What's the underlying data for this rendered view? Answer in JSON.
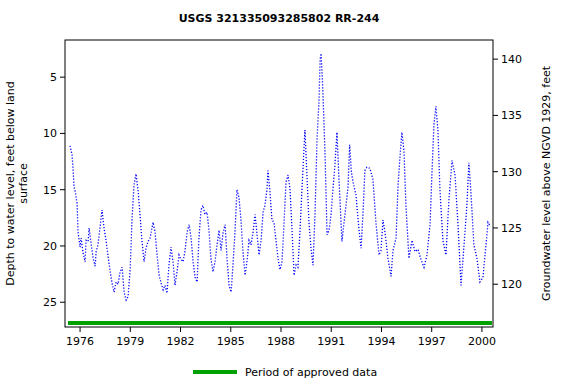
{
  "chart_data": {
    "type": "line",
    "title": "USGS 321335093285802 RR-244",
    "ylabel": [
      "Depth to water level, feet below land",
      "surface"
    ],
    "y2label": "Groundwater level above NGVD 1929, feet",
    "xlim": [
      1975.1,
      2000.66
    ],
    "xticks": [
      1976,
      1979,
      1982,
      1985,
      1988,
      1991,
      1994,
      1997,
      2000
    ],
    "ylim": [
      1.7,
      27.2
    ],
    "yticks": [
      5,
      10,
      15,
      20,
      25
    ],
    "y2lim": [
      141.7,
      116.2
    ],
    "y2ticks": [
      120,
      125,
      130,
      135,
      140
    ],
    "grid": false,
    "x": [
      1975.4,
      1975.52,
      1975.58,
      1975.64,
      1975.7,
      1975.82,
      1975.88,
      1976.0,
      1976.06,
      1976.18,
      1976.3,
      1976.36,
      1976.48,
      1976.54,
      1976.66,
      1976.78,
      1976.9,
      1976.96,
      1977.07,
      1977.19,
      1977.31,
      1977.43,
      1977.55,
      1977.67,
      1977.79,
      1977.91,
      1978.03,
      1978.15,
      1978.27,
      1978.39,
      1978.51,
      1978.63,
      1978.75,
      1978.87,
      1978.99,
      1979.1,
      1979.22,
      1979.34,
      1979.46,
      1979.58,
      1979.7,
      1979.82,
      1979.94,
      1980.06,
      1980.18,
      1980.36,
      1980.48,
      1980.6,
      1980.72,
      1980.84,
      1980.96,
      1981.07,
      1981.19,
      1981.31,
      1981.43,
      1981.55,
      1981.67,
      1981.79,
      1981.91,
      1982.03,
      1982.15,
      1982.27,
      1982.39,
      1982.51,
      1982.63,
      1982.75,
      1982.87,
      1982.99,
      1983.1,
      1983.22,
      1983.34,
      1983.46,
      1983.58,
      1983.7,
      1983.82,
      1983.94,
      1984.06,
      1984.18,
      1984.3,
      1984.42,
      1984.54,
      1984.66,
      1984.78,
      1984.9,
      1985.02,
      1985.13,
      1985.25,
      1985.37,
      1985.49,
      1985.61,
      1985.73,
      1985.85,
      1985.97,
      1986.09,
      1986.21,
      1986.33,
      1986.45,
      1986.57,
      1986.69,
      1986.81,
      1986.93,
      1987.04,
      1987.16,
      1987.22,
      1987.34,
      1987.46,
      1987.58,
      1987.7,
      1987.82,
      1987.94,
      1988.06,
      1988.18,
      1988.3,
      1988.42,
      1988.54,
      1988.66,
      1988.78,
      1988.9,
      1989.01,
      1989.13,
      1989.25,
      1989.43,
      1989.55,
      1989.67,
      1989.79,
      1989.91,
      1990.03,
      1990.15,
      1990.27,
      1990.33,
      1990.39,
      1990.45,
      1990.51,
      1990.63,
      1990.75,
      1990.87,
      1990.99,
      1991.1,
      1991.22,
      1991.34,
      1991.46,
      1991.64,
      1991.82,
      1992.0,
      1992.1,
      1992.2,
      1992.3,
      1992.48,
      1992.66,
      1992.78,
      1992.9,
      1993.01,
      1993.13,
      1993.31,
      1993.49,
      1993.67,
      1993.85,
      1993.97,
      1994.09,
      1994.21,
      1994.39,
      1994.57,
      1994.69,
      1994.87,
      1994.99,
      1995.1,
      1995.22,
      1995.34,
      1995.46,
      1995.64,
      1995.82,
      1996.0,
      1996.18,
      1996.36,
      1996.54,
      1996.72,
      1996.9,
      1997.01,
      1997.13,
      1997.25,
      1997.37,
      1997.49,
      1997.67,
      1997.85,
      1998.03,
      1998.21,
      1998.39,
      1998.57,
      1998.75,
      1998.93,
      1999.1,
      1999.22,
      1999.34,
      1999.52,
      1999.7,
      1999.88,
      2000.06,
      2000.24,
      2000.36,
      2000.48
    ],
    "series": [
      {
        "name": "Depth to water level",
        "color": "#0000ff",
        "line_style": "dotted",
        "values": [
          11.1,
          11.9,
          13.1,
          14.8,
          15.1,
          16.2,
          18.8,
          20.1,
          19.3,
          20.6,
          21.4,
          19.5,
          19.6,
          18.4,
          19.8,
          21.1,
          21.8,
          20.5,
          19.9,
          18.4,
          16.8,
          18.4,
          19.5,
          20.9,
          22.2,
          23.3,
          24.1,
          23.2,
          23.4,
          22.3,
          21.9,
          24.1,
          24.8,
          24.5,
          22.1,
          17.7,
          14.6,
          13.6,
          15.0,
          17.2,
          19.6,
          21.4,
          20.2,
          19.6,
          19.3,
          17.9,
          18.8,
          20.8,
          22.6,
          23.3,
          23.9,
          23.5,
          24.2,
          21.7,
          20.1,
          21.4,
          23.5,
          22.3,
          20.8,
          21.2,
          21.4,
          20.4,
          18.8,
          18.1,
          19.3,
          21.4,
          22.8,
          23.2,
          19.3,
          16.8,
          16.4,
          17.2,
          17.0,
          18.6,
          21.2,
          22.3,
          21.4,
          19.9,
          18.6,
          20.4,
          18.8,
          18.1,
          21.2,
          23.5,
          24.1,
          21.7,
          18.8,
          15.0,
          15.7,
          17.7,
          20.5,
          22.6,
          21.4,
          19.5,
          19.9,
          18.8,
          17.2,
          19.0,
          20.8,
          19.5,
          17.0,
          16.4,
          15.0,
          13.3,
          15.2,
          17.7,
          17.9,
          19.5,
          21.1,
          22.1,
          21.4,
          17.9,
          14.3,
          13.7,
          15.0,
          18.6,
          22.6,
          21.7,
          21.9,
          18.8,
          15.0,
          9.7,
          13.7,
          17.9,
          20.2,
          21.7,
          17.2,
          10.6,
          7.0,
          3.5,
          2.9,
          4.6,
          6.6,
          11.9,
          19.0,
          18.6,
          17.2,
          15.0,
          12.8,
          9.9,
          14.0,
          19.6,
          17.2,
          14.8,
          11.0,
          13.4,
          14.3,
          15.5,
          18.6,
          20.2,
          17.0,
          13.3,
          13.0,
          13.1,
          14.1,
          17.9,
          20.8,
          20.4,
          17.7,
          18.8,
          21.1,
          22.7,
          20.4,
          19.3,
          14.6,
          12.2,
          9.9,
          11.5,
          16.4,
          21.1,
          19.5,
          20.5,
          20.3,
          21.2,
          21.9,
          20.8,
          18.1,
          13.7,
          9.3,
          7.6,
          9.7,
          15.0,
          19.5,
          20.8,
          15.9,
          12.4,
          13.7,
          18.1,
          23.5,
          19.9,
          16.4,
          12.6,
          15.2,
          19.9,
          21.1,
          23.2,
          22.8,
          19.9,
          17.9,
          18.2
        ]
      }
    ],
    "approved_period": {
      "name": "Period of approved data",
      "color": "#00a000",
      "x": [
        1975.28,
        2000.6
      ]
    }
  }
}
